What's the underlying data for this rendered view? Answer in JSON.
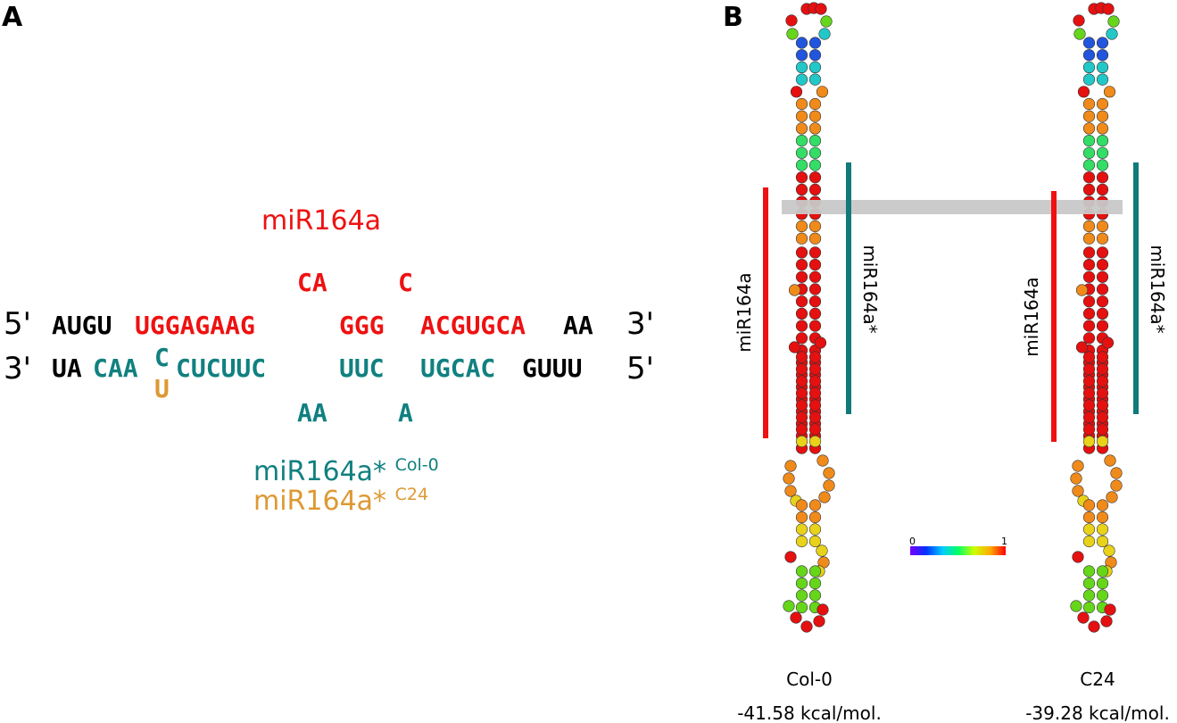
{
  "panel_a": {
    "label": "A",
    "mir_title": "miR164a",
    "top_bulges": [
      "CA",
      "C"
    ],
    "top": {
      "left_end": "5'",
      "right_end": "3'",
      "segments": [
        {
          "text": "AUGU",
          "color": "black"
        },
        {
          "text": "UGGAGAAG",
          "color": "red"
        },
        {
          "text": "GGG",
          "color": "red"
        },
        {
          "text": "ACGUGCA",
          "color": "red"
        },
        {
          "text": "AA",
          "color": "black"
        }
      ]
    },
    "bottom": {
      "left_end": "3'",
      "right_end": "5'",
      "segments": [
        {
          "text": "UA",
          "color": "black"
        },
        {
          "text": "CAA",
          "color": "teal"
        },
        {
          "text": "CUCUUC",
          "color": "teal"
        },
        {
          "text": "UUC",
          "color": "teal"
        },
        {
          "text": "UGCAC",
          "color": "teal"
        },
        {
          "text": "GUUU",
          "color": "black"
        }
      ],
      "variant_top": "C",
      "variant_bottom": "U"
    },
    "bottom_bulges": [
      "AA",
      "A"
    ],
    "legend": [
      {
        "name": "miR164a*",
        "sup": "Col-0",
        "color": "#118080"
      },
      {
        "name": "miR164a*",
        "sup": "C24",
        "color": "#dd9933"
      }
    ]
  },
  "panel_b": {
    "label": "B",
    "structures": [
      {
        "name": "Col-0",
        "energy": "-41.58 kcal/mol."
      },
      {
        "name": "C24",
        "energy": "-39.28 kcal/mol."
      }
    ],
    "mir_label": "miR164a",
    "star_label": "miR164a*",
    "scale_min": "0",
    "scale_max": "1",
    "colors": {
      "red": "#ee1111",
      "teal": "#117a7a",
      "band": "#c8c8c8"
    }
  }
}
